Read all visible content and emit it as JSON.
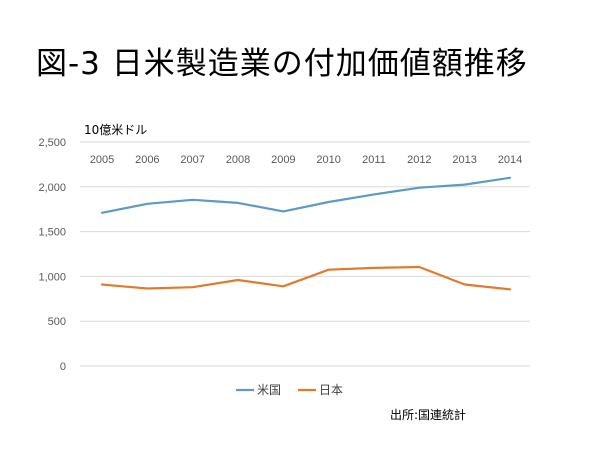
{
  "slide": {
    "title": "図-3 日米製造業の付加価値額推移",
    "source": "出所:国連統計"
  },
  "colors": {
    "us": "#5b9bc4",
    "japan": "#e07b2e",
    "grid": "#d9d9d9",
    "axis_text": "#595959"
  },
  "chart_data": {
    "type": "line",
    "title": "図-3 日米製造業の付加価値額推移",
    "ylabel": "10億米ドル",
    "xlabel": "",
    "categories": [
      "2005",
      "2006",
      "2007",
      "2008",
      "2009",
      "2010",
      "2011",
      "2012",
      "2013",
      "2014"
    ],
    "ylim": [
      0,
      2500
    ],
    "yticks": [
      0,
      500,
      1000,
      1500,
      2000,
      2500
    ],
    "ytick_labels": [
      "0",
      "500",
      "1,000",
      "1,500",
      "2,000",
      "2,500"
    ],
    "grid": true,
    "xaxis_position": "top",
    "legend_position": "bottom",
    "series": [
      {
        "name": "米国",
        "color": "#5b9bc4",
        "values": [
          1710,
          1810,
          1855,
          1820,
          1725,
          1830,
          1915,
          1990,
          2025,
          2100
        ]
      },
      {
        "name": "日本",
        "color": "#e07b2e",
        "values": [
          910,
          865,
          880,
          960,
          890,
          1075,
          1095,
          1105,
          910,
          855
        ]
      }
    ]
  }
}
